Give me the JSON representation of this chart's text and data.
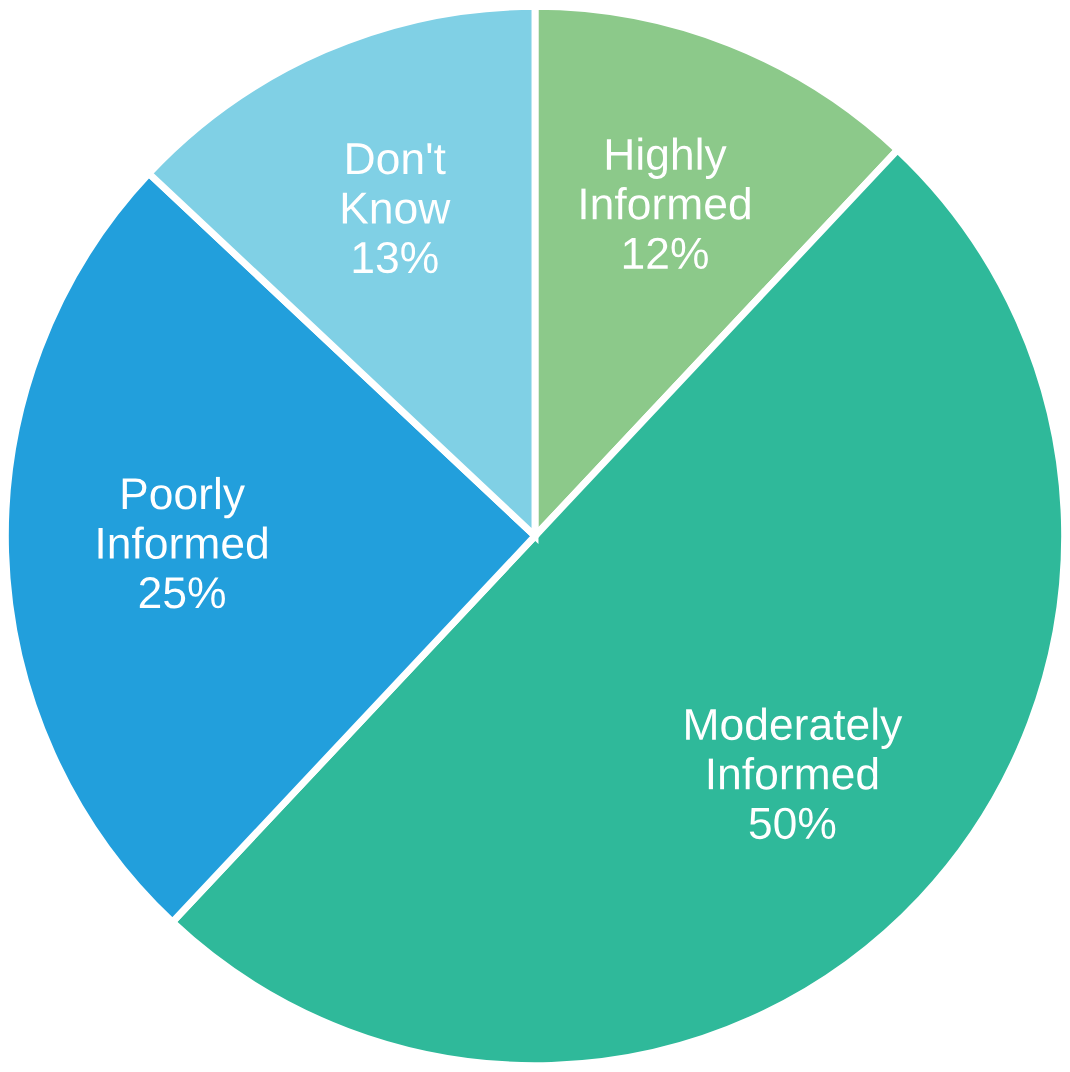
{
  "chart_data": {
    "type": "pie",
    "categories": [
      "Highly Informed",
      "Moderately Informed",
      "Poorly Informed",
      "Don't Know"
    ],
    "values": [
      12,
      50,
      25,
      13
    ],
    "colors": [
      "#8cc98a",
      "#2fb99a",
      "#229fdc",
      "#80d0e5"
    ],
    "value_labels": [
      "12%",
      "50%",
      "25%",
      "13%"
    ]
  }
}
